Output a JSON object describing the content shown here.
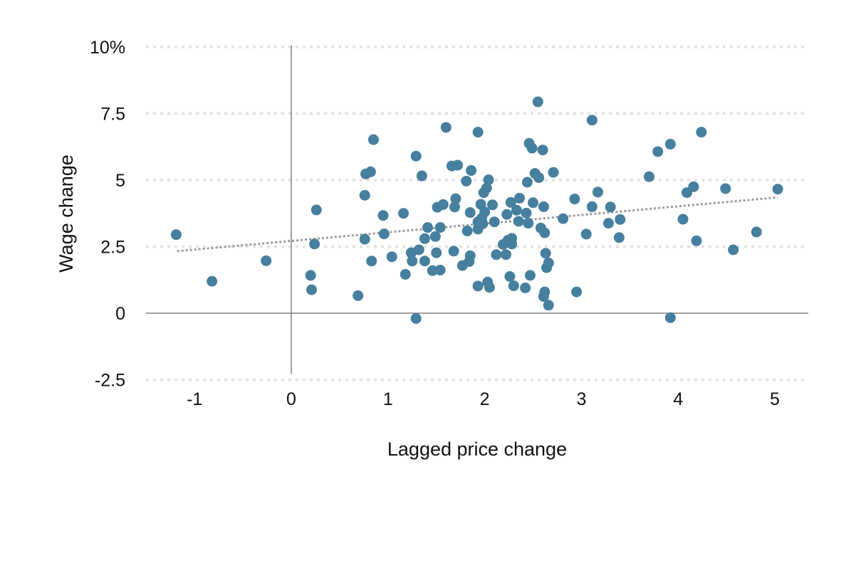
{
  "chart_data": {
    "type": "scatter",
    "xlabel": "Lagged price change",
    "ylabel": "Wage change",
    "xlim": [
      -1.5,
      5.35
    ],
    "ylim": [
      -2.5,
      10
    ],
    "x_ticks": [
      -1,
      0,
      1,
      2,
      3,
      4,
      5
    ],
    "x_tick_labels": [
      "-1",
      "0",
      "1",
      "2",
      "3",
      "4",
      "5"
    ],
    "y_ticks": [
      10,
      7.5,
      5,
      2.5,
      0,
      -2.5
    ],
    "y_tick_labels": [
      "10%",
      "7.5",
      "5",
      "2.5",
      "0",
      "-2.5"
    ],
    "grid": "horizontal dotted",
    "colors": {
      "points": "#477f9e",
      "trend": "#9a9a9a",
      "grid": "#e3e3e3",
      "zero_line": "#808080"
    },
    "trendline": {
      "x": [
        -1.18,
        5.03
      ],
      "y": [
        2.33,
        4.35
      ]
    },
    "points": [
      [
        -1.19,
        2.95
      ],
      [
        -0.82,
        1.2
      ],
      [
        -0.26,
        1.97
      ],
      [
        0.2,
        1.42
      ],
      [
        0.21,
        0.88
      ],
      [
        0.24,
        2.6
      ],
      [
        0.26,
        3.88
      ],
      [
        0.69,
        0.66
      ],
      [
        0.76,
        4.43
      ],
      [
        0.76,
        2.78
      ],
      [
        0.77,
        5.23
      ],
      [
        0.82,
        5.31
      ],
      [
        0.83,
        1.96
      ],
      [
        0.85,
        6.52
      ],
      [
        0.95,
        3.67
      ],
      [
        0.96,
        2.98
      ],
      [
        1.04,
        2.12
      ],
      [
        1.16,
        3.75
      ],
      [
        1.18,
        1.46
      ],
      [
        1.24,
        2.27
      ],
      [
        1.25,
        1.96
      ],
      [
        1.29,
        5.9
      ],
      [
        1.29,
        -0.2
      ],
      [
        1.32,
        2.38
      ],
      [
        1.35,
        5.16
      ],
      [
        1.38,
        1.96
      ],
      [
        1.38,
        2.8
      ],
      [
        1.41,
        3.22
      ],
      [
        1.46,
        1.6
      ],
      [
        1.49,
        2.88
      ],
      [
        1.5,
        2.27
      ],
      [
        1.51,
        3.98
      ],
      [
        1.54,
        3.22
      ],
      [
        1.54,
        1.62
      ],
      [
        1.57,
        4.08
      ],
      [
        1.6,
        6.98
      ],
      [
        1.66,
        5.53
      ],
      [
        1.68,
        2.33
      ],
      [
        1.69,
        3.99
      ],
      [
        1.7,
        4.3
      ],
      [
        1.72,
        5.56
      ],
      [
        1.77,
        1.79
      ],
      [
        1.81,
        4.96
      ],
      [
        1.82,
        3.09
      ],
      [
        1.84,
        1.94
      ],
      [
        1.85,
        2.16
      ],
      [
        1.85,
        3.78
      ],
      [
        1.86,
        5.36
      ],
      [
        1.93,
        6.8
      ],
      [
        1.93,
        1.02
      ],
      [
        1.93,
        3.16
      ],
      [
        1.93,
        3.43
      ],
      [
        1.96,
        4.09
      ],
      [
        1.97,
        3.57
      ],
      [
        1.98,
        3.36
      ],
      [
        1.99,
        4.53
      ],
      [
        2.0,
        3.8
      ],
      [
        2.02,
        4.7
      ],
      [
        2.03,
        1.17
      ],
      [
        2.04,
        5.01
      ],
      [
        2.05,
        0.97
      ],
      [
        2.08,
        4.07
      ],
      [
        2.1,
        3.43
      ],
      [
        2.12,
        2.2
      ],
      [
        2.19,
        2.58
      ],
      [
        2.22,
        2.2
      ],
      [
        2.23,
        3.71
      ],
      [
        2.24,
        2.74
      ],
      [
        2.26,
        1.38
      ],
      [
        2.27,
        4.16
      ],
      [
        2.28,
        2.81
      ],
      [
        2.28,
        2.6
      ],
      [
        2.3,
        1.03
      ],
      [
        2.33,
        3.87
      ],
      [
        2.35,
        3.45
      ],
      [
        2.36,
        4.32
      ],
      [
        2.42,
        0.95
      ],
      [
        2.43,
        3.76
      ],
      [
        2.44,
        4.92
      ],
      [
        2.45,
        3.38
      ],
      [
        2.46,
        6.38
      ],
      [
        2.47,
        1.42
      ],
      [
        2.49,
        6.2
      ],
      [
        2.5,
        4.15
      ],
      [
        2.52,
        5.25
      ],
      [
        2.55,
        7.94
      ],
      [
        2.56,
        5.09
      ],
      [
        2.58,
        3.2
      ],
      [
        2.6,
        6.13
      ],
      [
        2.61,
        4.0
      ],
      [
        2.61,
        0.63
      ],
      [
        2.62,
        0.8
      ],
      [
        2.62,
        3.02
      ],
      [
        2.63,
        2.25
      ],
      [
        2.64,
        1.71
      ],
      [
        2.66,
        1.89
      ],
      [
        2.66,
        0.3
      ],
      [
        2.71,
        5.29
      ],
      [
        2.81,
        3.55
      ],
      [
        2.93,
        4.29
      ],
      [
        2.95,
        0.8
      ],
      [
        3.05,
        2.97
      ],
      [
        3.11,
        4.0
      ],
      [
        3.11,
        7.25
      ],
      [
        3.17,
        4.55
      ],
      [
        3.28,
        3.38
      ],
      [
        3.3,
        3.99
      ],
      [
        3.39,
        2.84
      ],
      [
        3.4,
        3.52
      ],
      [
        3.7,
        5.13
      ],
      [
        3.79,
        6.07
      ],
      [
        3.92,
        6.35
      ],
      [
        3.92,
        -0.17
      ],
      [
        4.05,
        3.53
      ],
      [
        4.09,
        4.53
      ],
      [
        4.16,
        4.75
      ],
      [
        4.19,
        2.72
      ],
      [
        4.24,
        6.8
      ],
      [
        4.49,
        4.68
      ],
      [
        4.57,
        2.38
      ],
      [
        4.81,
        3.05
      ],
      [
        5.03,
        4.66
      ]
    ]
  }
}
